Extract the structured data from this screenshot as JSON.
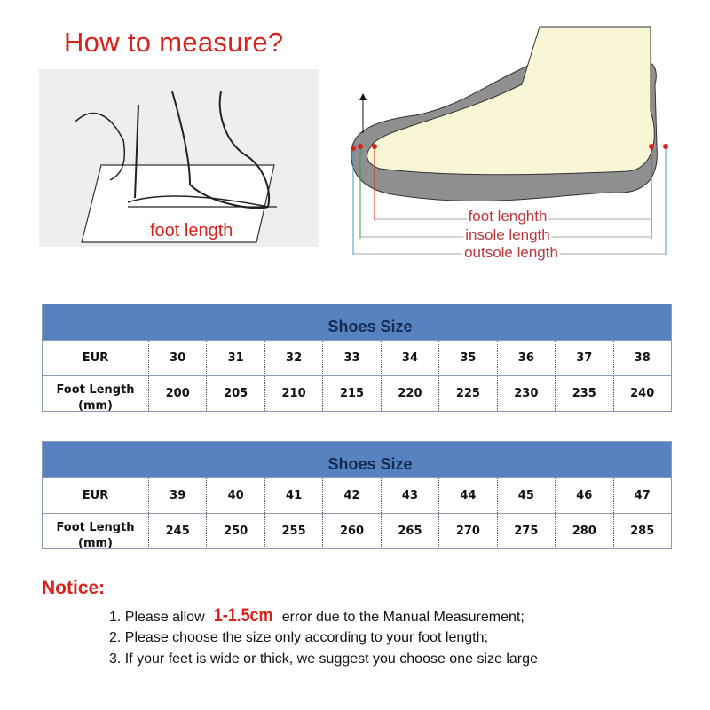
{
  "title": "How to measure?",
  "left_illustration": {
    "label": "foot length"
  },
  "right_illustration": {
    "labels": [
      "foot lenghth",
      "insole length",
      "outsole length"
    ]
  },
  "tables": [
    {
      "header": "Shoes Size",
      "rows": [
        {
          "label": "EUR",
          "values": [
            "30",
            "31",
            "32",
            "33",
            "34",
            "35",
            "36",
            "37",
            "38"
          ]
        },
        {
          "label": "Foot Length (mm)",
          "values": [
            "200",
            "205",
            "210",
            "215",
            "220",
            "225",
            "230",
            "235",
            "240"
          ]
        }
      ]
    },
    {
      "header": "Shoes Size",
      "rows": [
        {
          "label": "EUR",
          "values": [
            "39",
            "40",
            "41",
            "42",
            "43",
            "44",
            "45",
            "46",
            "47"
          ]
        },
        {
          "label": "Foot Length (mm)",
          "values": [
            "245",
            "250",
            "255",
            "260",
            "265",
            "270",
            "275",
            "280",
            "285"
          ]
        }
      ]
    }
  ],
  "notice": {
    "title": "Notice:",
    "items": [
      {
        "pre": "1. Please allow ",
        "highlight": "1-1.5cm",
        "post": " error due to the Manual Measurement;"
      },
      {
        "text": "2. Please choose the size only according to your foot length;"
      },
      {
        "text": "3. If your feet is wide or thick, we suggest you choose one size large"
      }
    ]
  },
  "colors": {
    "accent_red": "#d8221c",
    "table_header": "#5682c0"
  }
}
